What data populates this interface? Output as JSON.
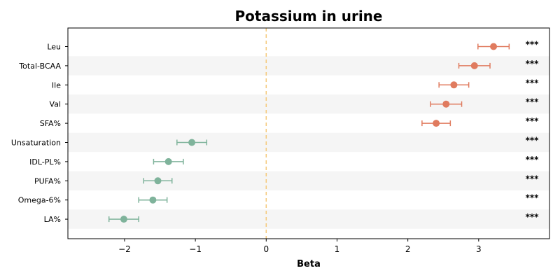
{
  "chart_data": {
    "type": "scatter",
    "subtype": "forest-plot",
    "title": "Potassium in urine",
    "xlabel": "Beta",
    "ylabel": "",
    "xlim": [
      -2.8,
      4.0
    ],
    "xticks": [
      -2,
      -1,
      0,
      1,
      2,
      3
    ],
    "xtick_labels": [
      "−2",
      "−1",
      "0",
      "1",
      "2",
      "3"
    ],
    "reference_line": {
      "x": 0,
      "style": "dashed",
      "color": "#f5c97a"
    },
    "grid": false,
    "alternating_row_shading": true,
    "colors": {
      "positive": "#e07b5f",
      "negative": "#7fb39b",
      "shade": "#f5f5f5"
    },
    "rows": [
      {
        "label": "Leu",
        "beta": 3.21,
        "ci_low": 2.99,
        "ci_high": 3.43,
        "sig": "***"
      },
      {
        "label": "Total-BCAA",
        "beta": 2.94,
        "ci_low": 2.72,
        "ci_high": 3.16,
        "sig": "***"
      },
      {
        "label": "Ile",
        "beta": 2.65,
        "ci_low": 2.44,
        "ci_high": 2.86,
        "sig": "***"
      },
      {
        "label": "Val",
        "beta": 2.54,
        "ci_low": 2.32,
        "ci_high": 2.76,
        "sig": "***"
      },
      {
        "label": "SFA%",
        "beta": 2.4,
        "ci_low": 2.2,
        "ci_high": 2.6,
        "sig": "***"
      },
      {
        "label": "Unsaturation",
        "beta": -1.05,
        "ci_low": -1.26,
        "ci_high": -0.84,
        "sig": "***"
      },
      {
        "label": "IDL-PL%",
        "beta": -1.38,
        "ci_low": -1.59,
        "ci_high": -1.17,
        "sig": "***"
      },
      {
        "label": "PUFA%",
        "beta": -1.53,
        "ci_low": -1.73,
        "ci_high": -1.33,
        "sig": "***"
      },
      {
        "label": "Omega-6%",
        "beta": -1.6,
        "ci_low": -1.8,
        "ci_high": -1.4,
        "sig": "***"
      },
      {
        "label": "LA%",
        "beta": -2.01,
        "ci_low": -2.22,
        "ci_high": -1.8,
        "sig": "***"
      }
    ]
  }
}
